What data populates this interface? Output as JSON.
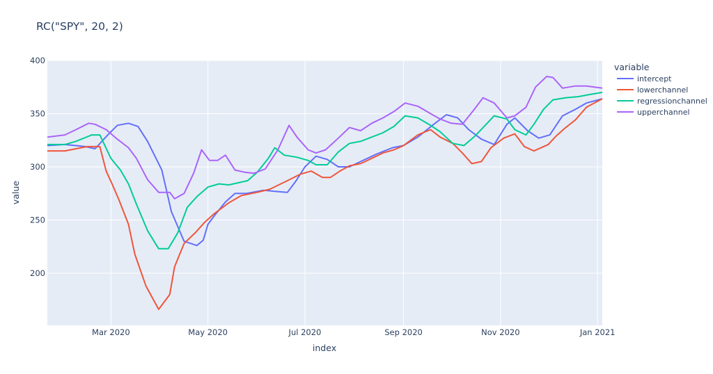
{
  "chart_data": {
    "type": "line",
    "title": "RC(\"SPY\", 20, 2)",
    "xlabel": "index",
    "ylabel": "value",
    "legend_title": "variable",
    "legend_position": "right",
    "grid": true,
    "xlim": [
      "2020-01-21",
      "2021-01-04"
    ],
    "ylim": [
      151,
      400
    ],
    "x_ticks": [
      "Mar 2020",
      "May 2020",
      "Jul 2020",
      "Sep 2020",
      "Nov 2020",
      "Jan 2021"
    ],
    "x_tick_dates": [
      "2020-03-01",
      "2020-05-01",
      "2020-07-01",
      "2020-09-01",
      "2020-11-01",
      "2021-01-01"
    ],
    "y_ticks": [
      200,
      250,
      300,
      350,
      400
    ],
    "plot_bg": "#e5ecf6",
    "grid_color": "#ffffff",
    "text_color": "#2a3f5f",
    "series": [
      {
        "name": "intercept",
        "color": "#636efa",
        "points": [
          [
            "2020-01-21",
            320
          ],
          [
            "2020-02-01",
            321
          ],
          [
            "2020-02-14",
            319
          ],
          [
            "2020-02-20",
            317
          ],
          [
            "2020-02-28",
            330
          ],
          [
            "2020-03-05",
            339
          ],
          [
            "2020-03-12",
            341
          ],
          [
            "2020-03-18",
            338
          ],
          [
            "2020-03-24",
            324
          ],
          [
            "2020-04-02",
            297
          ],
          [
            "2020-04-08",
            258
          ],
          [
            "2020-04-16",
            230
          ],
          [
            "2020-04-24",
            226
          ],
          [
            "2020-04-28",
            231
          ],
          [
            "2020-05-01",
            246
          ],
          [
            "2020-05-05",
            254
          ],
          [
            "2020-05-12",
            267
          ],
          [
            "2020-05-18",
            275
          ],
          [
            "2020-05-25",
            275
          ],
          [
            "2020-06-05",
            278
          ],
          [
            "2020-06-12",
            277
          ],
          [
            "2020-06-20",
            276
          ],
          [
            "2020-06-25",
            286
          ],
          [
            "2020-07-01",
            300
          ],
          [
            "2020-07-08",
            310
          ],
          [
            "2020-07-15",
            307
          ],
          [
            "2020-07-22",
            300
          ],
          [
            "2020-07-29",
            300
          ],
          [
            "2020-08-05",
            305
          ],
          [
            "2020-08-15",
            312
          ],
          [
            "2020-08-25",
            318
          ],
          [
            "2020-09-01",
            320
          ],
          [
            "2020-09-10",
            328
          ],
          [
            "2020-09-20",
            340
          ],
          [
            "2020-09-28",
            349
          ],
          [
            "2020-10-05",
            346
          ],
          [
            "2020-10-12",
            335
          ],
          [
            "2020-10-20",
            326
          ],
          [
            "2020-10-28",
            321
          ],
          [
            "2020-11-05",
            340
          ],
          [
            "2020-11-10",
            346
          ],
          [
            "2020-11-18",
            334
          ],
          [
            "2020-11-25",
            327
          ],
          [
            "2020-12-02",
            330
          ],
          [
            "2020-12-10",
            348
          ],
          [
            "2020-12-18",
            354
          ],
          [
            "2020-12-25",
            360
          ],
          [
            "2021-01-04",
            364
          ]
        ]
      },
      {
        "name": "lowerchannel",
        "color": "#ef553b",
        "points": [
          [
            "2020-01-21",
            315
          ],
          [
            "2020-02-01",
            315
          ],
          [
            "2020-02-15",
            319
          ],
          [
            "2020-02-23",
            319
          ],
          [
            "2020-02-27",
            296
          ],
          [
            "2020-03-02",
            283
          ],
          [
            "2020-03-06",
            269
          ],
          [
            "2020-03-12",
            246
          ],
          [
            "2020-03-16",
            218
          ],
          [
            "2020-03-23",
            188
          ],
          [
            "2020-03-31",
            166
          ],
          [
            "2020-04-07",
            180
          ],
          [
            "2020-04-10",
            206
          ],
          [
            "2020-04-16",
            228
          ],
          [
            "2020-04-23",
            238
          ],
          [
            "2020-04-29",
            248
          ],
          [
            "2020-05-05",
            256
          ],
          [
            "2020-05-14",
            266
          ],
          [
            "2020-05-22",
            273
          ],
          [
            "2020-06-01",
            276
          ],
          [
            "2020-06-09",
            279
          ],
          [
            "2020-06-20",
            287
          ],
          [
            "2020-06-28",
            293
          ],
          [
            "2020-07-05",
            296
          ],
          [
            "2020-07-12",
            290
          ],
          [
            "2020-07-17",
            290
          ],
          [
            "2020-07-23",
            296
          ],
          [
            "2020-07-29",
            301
          ],
          [
            "2020-08-05",
            303
          ],
          [
            "2020-08-12",
            308
          ],
          [
            "2020-08-19",
            313
          ],
          [
            "2020-08-26",
            316
          ],
          [
            "2020-09-01",
            320
          ],
          [
            "2020-09-10",
            330
          ],
          [
            "2020-09-18",
            335
          ],
          [
            "2020-09-24",
            328
          ],
          [
            "2020-10-02",
            322
          ],
          [
            "2020-10-08",
            313
          ],
          [
            "2020-10-14",
            303
          ],
          [
            "2020-10-20",
            305
          ],
          [
            "2020-10-26",
            318
          ],
          [
            "2020-11-03",
            327
          ],
          [
            "2020-11-10",
            331
          ],
          [
            "2020-11-16",
            319
          ],
          [
            "2020-11-22",
            315
          ],
          [
            "2020-12-01",
            321
          ],
          [
            "2020-12-06",
            329
          ],
          [
            "2020-12-12",
            337
          ],
          [
            "2020-12-18",
            344
          ],
          [
            "2020-12-25",
            356
          ],
          [
            "2021-01-04",
            364
          ]
        ]
      },
      {
        "name": "regressionchannel",
        "color": "#00cc96",
        "points": [
          [
            "2020-01-21",
            321
          ],
          [
            "2020-02-01",
            321
          ],
          [
            "2020-02-08",
            324
          ],
          [
            "2020-02-18",
            330
          ],
          [
            "2020-02-23",
            330
          ],
          [
            "2020-03-01",
            308
          ],
          [
            "2020-03-07",
            297
          ],
          [
            "2020-03-12",
            284
          ],
          [
            "2020-03-17",
            265
          ],
          [
            "2020-03-24",
            240
          ],
          [
            "2020-03-31",
            223
          ],
          [
            "2020-04-06",
            223
          ],
          [
            "2020-04-12",
            238
          ],
          [
            "2020-04-18",
            262
          ],
          [
            "2020-04-24",
            272
          ],
          [
            "2020-05-01",
            281
          ],
          [
            "2020-05-08",
            284
          ],
          [
            "2020-05-14",
            283
          ],
          [
            "2020-05-20",
            285
          ],
          [
            "2020-05-26",
            287
          ],
          [
            "2020-06-01",
            295
          ],
          [
            "2020-06-08",
            308
          ],
          [
            "2020-06-12",
            318
          ],
          [
            "2020-06-18",
            311
          ],
          [
            "2020-06-26",
            309
          ],
          [
            "2020-07-03",
            306
          ],
          [
            "2020-07-08",
            302
          ],
          [
            "2020-07-15",
            302
          ],
          [
            "2020-07-22",
            314
          ],
          [
            "2020-07-29",
            322
          ],
          [
            "2020-08-05",
            324
          ],
          [
            "2020-08-12",
            328
          ],
          [
            "2020-08-19",
            332
          ],
          [
            "2020-08-26",
            338
          ],
          [
            "2020-09-02",
            348
          ],
          [
            "2020-09-10",
            346
          ],
          [
            "2020-09-18",
            339
          ],
          [
            "2020-09-24",
            333
          ],
          [
            "2020-10-02",
            322
          ],
          [
            "2020-10-09",
            320
          ],
          [
            "2020-10-16",
            329
          ],
          [
            "2020-10-23",
            340
          ],
          [
            "2020-10-28",
            348
          ],
          [
            "2020-11-05",
            345
          ],
          [
            "2020-11-10",
            335
          ],
          [
            "2020-11-17",
            330
          ],
          [
            "2020-11-22",
            340
          ],
          [
            "2020-11-28",
            354
          ],
          [
            "2020-12-04",
            363
          ],
          [
            "2020-12-12",
            365
          ],
          [
            "2020-12-20",
            366
          ],
          [
            "2020-12-27",
            368
          ],
          [
            "2021-01-04",
            370
          ]
        ]
      },
      {
        "name": "upperchannel",
        "color": "#ab63fa",
        "points": [
          [
            "2020-01-21",
            328
          ],
          [
            "2020-02-01",
            330
          ],
          [
            "2020-02-08",
            335
          ],
          [
            "2020-02-16",
            341
          ],
          [
            "2020-02-20",
            340
          ],
          [
            "2020-02-27",
            335
          ],
          [
            "2020-03-05",
            326
          ],
          [
            "2020-03-12",
            318
          ],
          [
            "2020-03-17",
            308
          ],
          [
            "2020-03-24",
            288
          ],
          [
            "2020-03-31",
            276
          ],
          [
            "2020-04-07",
            276
          ],
          [
            "2020-04-10",
            270
          ],
          [
            "2020-04-16",
            275
          ],
          [
            "2020-04-22",
            294
          ],
          [
            "2020-04-27",
            316
          ],
          [
            "2020-05-02",
            306
          ],
          [
            "2020-05-07",
            306
          ],
          [
            "2020-05-12",
            311
          ],
          [
            "2020-05-18",
            297
          ],
          [
            "2020-05-24",
            295
          ],
          [
            "2020-05-30",
            294
          ],
          [
            "2020-06-06",
            298
          ],
          [
            "2020-06-14",
            316
          ],
          [
            "2020-06-21",
            339
          ],
          [
            "2020-06-26",
            328
          ],
          [
            "2020-07-03",
            316
          ],
          [
            "2020-07-08",
            313
          ],
          [
            "2020-07-14",
            316
          ],
          [
            "2020-07-22",
            327
          ],
          [
            "2020-07-29",
            337
          ],
          [
            "2020-08-05",
            334
          ],
          [
            "2020-08-12",
            341
          ],
          [
            "2020-08-19",
            346
          ],
          [
            "2020-08-26",
            352
          ],
          [
            "2020-09-02",
            360
          ],
          [
            "2020-09-10",
            357
          ],
          [
            "2020-09-18",
            350
          ],
          [
            "2020-09-24",
            345
          ],
          [
            "2020-10-01",
            341
          ],
          [
            "2020-10-08",
            340
          ],
          [
            "2020-10-15",
            353
          ],
          [
            "2020-10-21",
            365
          ],
          [
            "2020-10-28",
            360
          ],
          [
            "2020-11-05",
            346
          ],
          [
            "2020-11-10",
            348
          ],
          [
            "2020-11-17",
            356
          ],
          [
            "2020-11-23",
            375
          ],
          [
            "2020-11-30",
            385
          ],
          [
            "2020-12-04",
            384
          ],
          [
            "2020-12-10",
            374
          ],
          [
            "2020-12-18",
            376
          ],
          [
            "2020-12-25",
            376
          ],
          [
            "2021-01-04",
            374
          ]
        ]
      }
    ]
  }
}
